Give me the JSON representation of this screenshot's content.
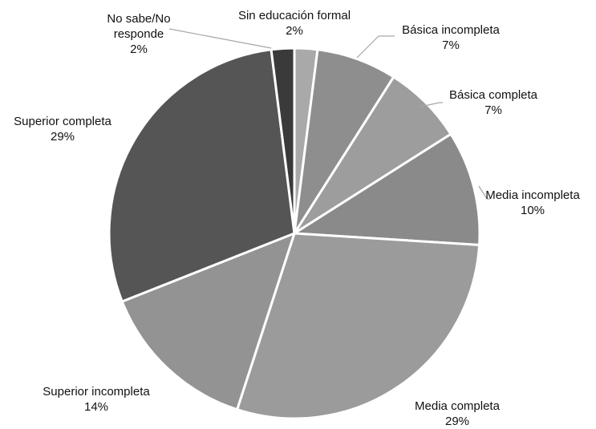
{
  "chart_data": {
    "type": "pie",
    "title": "",
    "slices": [
      {
        "name": "Sin educación formal",
        "value": 2,
        "label": "2%",
        "color": "#a9a9a9"
      },
      {
        "name": "Básica incompleta",
        "value": 7,
        "label": "7%",
        "color": "#8e8e8e"
      },
      {
        "name": "Básica completa",
        "value": 7,
        "label": "7%",
        "color": "#9d9d9d"
      },
      {
        "name": "Media incompleta",
        "value": 10,
        "label": "10%",
        "color": "#8a8a8a"
      },
      {
        "name": "Media completa",
        "value": 29,
        "label": "29%",
        "color": "#9b9b9b"
      },
      {
        "name": "Superior incompleta",
        "value": 14,
        "label": "14%",
        "color": "#939393"
      },
      {
        "name": "Superior completa",
        "value": 29,
        "label": "29%",
        "color": "#555555"
      },
      {
        "name": "No sabe/No responde",
        "name_lines": [
          "No sabe/No",
          "responde"
        ],
        "value": 2,
        "label": "2%",
        "color": "#3a3a3a"
      }
    ],
    "start": "12 o'clock",
    "direction": "clockwise",
    "legend": "none",
    "labels": "outside-with-leader-lines"
  }
}
